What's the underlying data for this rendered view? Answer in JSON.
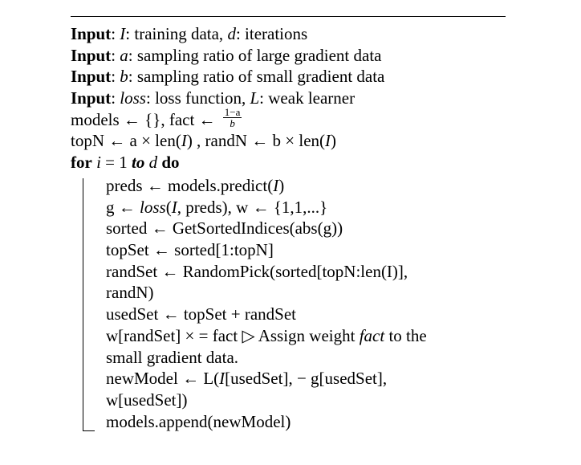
{
  "algorithm": {
    "header_lines": [
      {
        "keyword": "Input",
        "parts": [
          ": ",
          "I",
          ": training data, ",
          "d",
          ": iterations"
        ]
      },
      {
        "keyword": "Input",
        "parts": [
          ": ",
          "a",
          ": sampling ratio of large gradient data"
        ]
      },
      {
        "keyword": "Input",
        "parts": [
          ": ",
          "b",
          ": sampling ratio of small gradient data"
        ]
      },
      {
        "keyword": "Input",
        "parts": [
          ": ",
          "loss",
          ": loss function, ",
          "L",
          ": weak learner"
        ]
      }
    ],
    "init_models": "models ← {}, fact ← ",
    "fact_num": "1−a",
    "fact_den": "b",
    "init_top_pre": "topN ← a × len(",
    "init_top_I": "I",
    "init_top_mid": ") , randN ← b × len(",
    "init_top_I2": "I",
    "init_top_post": ")",
    "for_kw": "for",
    "for_var": "i",
    "for_eq": " = 1 ",
    "for_to": "to",
    "for_d": " d",
    "for_do": " do",
    "body": {
      "preds_pre": "preds ← models.predict(",
      "preds_I": "I",
      "preds_post": ")",
      "g_pre": "g ← ",
      "g_loss": "loss",
      "g_mid": "(",
      "g_I": "I",
      "g_post": ", preds), w ← {1,1,...}",
      "sorted": "sorted ← GetSortedIndices(abs(g))",
      "topset": "topSet ← sorted[1:topN]",
      "randset_1": "randSet ← RandomPick(sorted[topN:len(I)],",
      "randset_2": "randN)",
      "usedset": "usedSet ← topSet + randSet",
      "w_pre": "w[randSet] × = fact ▷ Assign weight ",
      "w_fact": "fact",
      "w_post": " to the",
      "w_2": "small gradient data.",
      "newmodel_pre": "newModel ← L(",
      "newmodel_I": "I",
      "newmodel_post": "[usedSet], − g[usedSet],",
      "newmodel_2": "w[usedSet])",
      "append": "models.append(newModel)"
    }
  }
}
